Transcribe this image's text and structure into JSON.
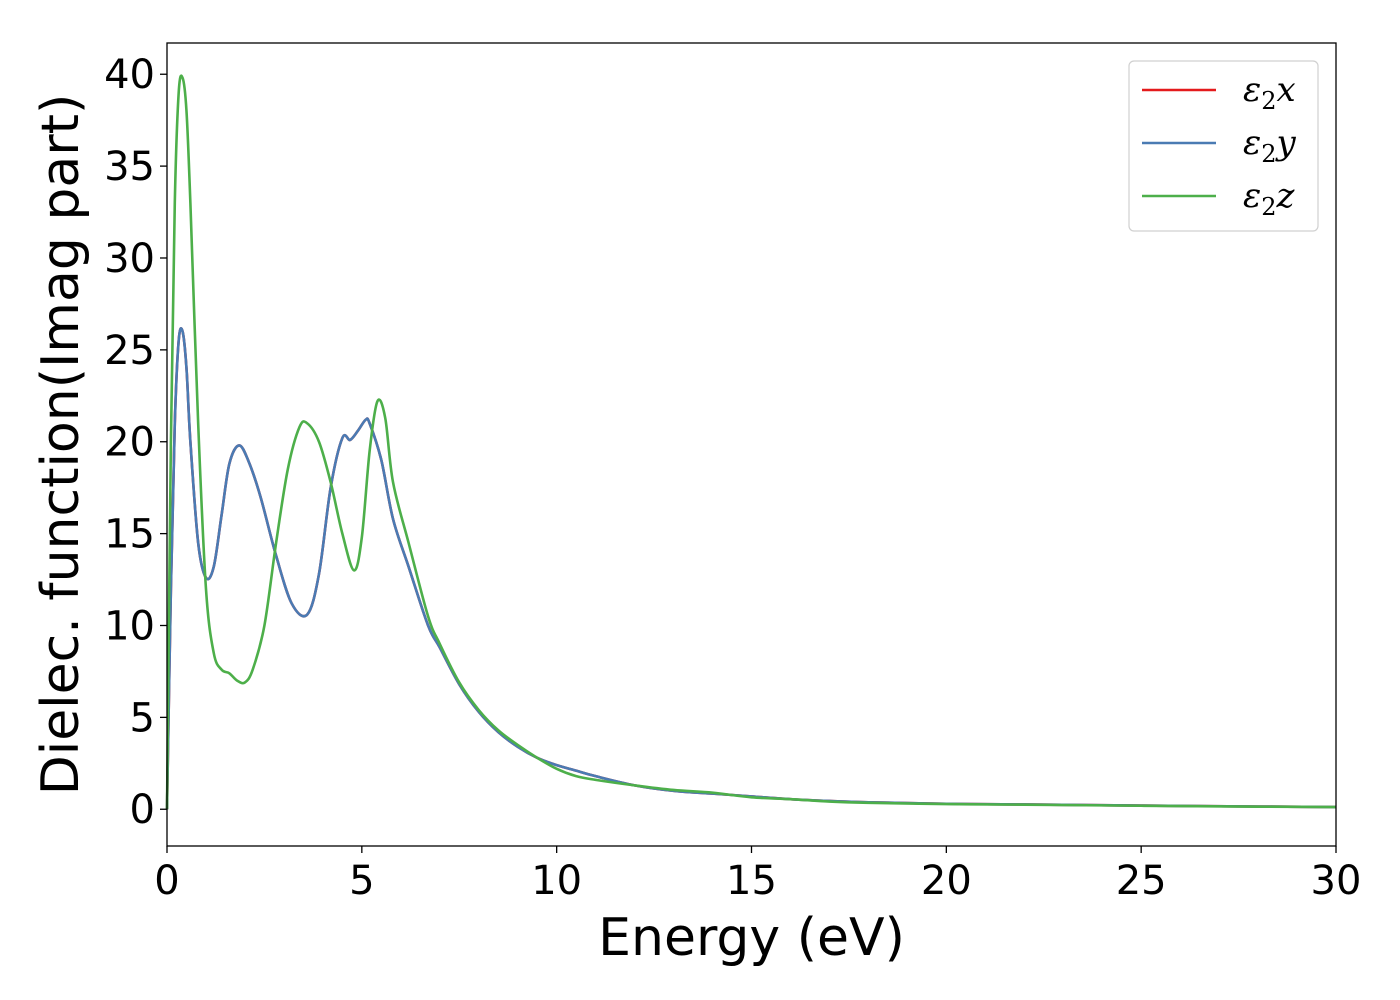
{
  "chart_data": {
    "type": "line",
    "xlabel": "Energy (eV)",
    "ylabel": "Dielec. function(Imag part)",
    "xlim": [
      0,
      30
    ],
    "ylim": [
      -2,
      41.7
    ],
    "xticks": [
      0,
      5,
      10,
      15,
      20,
      25,
      30
    ],
    "yticks": [
      0,
      5,
      10,
      15,
      20,
      25,
      30,
      35,
      40
    ],
    "grid": false,
    "legend_position": "top-right",
    "series": [
      {
        "name": "ε2x",
        "legend": {
          "base": "ε",
          "sub": "2",
          "suffix": "x"
        },
        "color": "#e41a1c",
        "x": [
          0,
          0.1,
          0.2,
          0.3,
          0.4,
          0.5,
          0.6,
          0.8,
          1.0,
          1.2,
          1.4,
          1.6,
          1.85,
          2.1,
          2.4,
          2.8,
          3.2,
          3.6,
          3.9,
          4.2,
          4.5,
          4.7,
          4.9,
          5.1,
          5.2,
          5.5,
          5.8,
          6.2,
          6.7,
          7.0,
          7.5,
          8.0,
          8.5,
          9.0,
          9.5,
          10.0,
          10.5,
          11.0,
          12.0,
          13.0,
          14.0,
          15.0,
          16.0,
          17.0,
          18.0,
          20.0,
          22.0,
          25.0,
          28.0,
          30.0
        ],
        "y": [
          0,
          12.0,
          21.0,
          25.5,
          26.0,
          24.0,
          20.0,
          14.5,
          12.6,
          13.2,
          16.0,
          18.8,
          19.8,
          18.9,
          17.0,
          13.8,
          11.2,
          10.6,
          12.8,
          17.5,
          20.2,
          20.1,
          20.6,
          21.2,
          21.0,
          19.0,
          15.8,
          13.2,
          10.0,
          8.8,
          6.8,
          5.3,
          4.2,
          3.4,
          2.8,
          2.4,
          2.1,
          1.8,
          1.3,
          1.0,
          0.85,
          0.7,
          0.55,
          0.45,
          0.38,
          0.3,
          0.26,
          0.2,
          0.15,
          0.12
        ]
      },
      {
        "name": "ε2y",
        "legend": {
          "base": "ε",
          "sub": "2",
          "suffix": "y"
        },
        "color": "#4a7bb3",
        "x": [
          0,
          0.1,
          0.2,
          0.3,
          0.4,
          0.5,
          0.6,
          0.8,
          1.0,
          1.2,
          1.4,
          1.6,
          1.85,
          2.1,
          2.4,
          2.8,
          3.2,
          3.6,
          3.9,
          4.2,
          4.5,
          4.7,
          4.9,
          5.1,
          5.2,
          5.5,
          5.8,
          6.2,
          6.7,
          7.0,
          7.5,
          8.0,
          8.5,
          9.0,
          9.5,
          10.0,
          10.5,
          11.0,
          12.0,
          13.0,
          14.0,
          15.0,
          16.0,
          17.0,
          18.0,
          20.0,
          22.0,
          25.0,
          28.0,
          30.0
        ],
        "y": [
          0,
          12.0,
          21.0,
          25.5,
          26.0,
          24.0,
          20.0,
          14.5,
          12.6,
          13.2,
          16.0,
          18.8,
          19.8,
          18.9,
          17.0,
          13.8,
          11.2,
          10.6,
          12.8,
          17.5,
          20.2,
          20.1,
          20.6,
          21.2,
          21.0,
          19.0,
          15.8,
          13.2,
          10.0,
          8.8,
          6.8,
          5.3,
          4.2,
          3.4,
          2.8,
          2.4,
          2.1,
          1.8,
          1.3,
          1.0,
          0.85,
          0.7,
          0.55,
          0.45,
          0.38,
          0.3,
          0.26,
          0.2,
          0.15,
          0.12
        ]
      },
      {
        "name": "ε2z",
        "legend": {
          "base": "ε",
          "sub": "2",
          "suffix": "z"
        },
        "color": "#4daf4a",
        "x": [
          0,
          0.1,
          0.2,
          0.3,
          0.4,
          0.5,
          0.6,
          0.8,
          1.0,
          1.2,
          1.4,
          1.6,
          1.8,
          2.0,
          2.2,
          2.5,
          2.8,
          3.1,
          3.4,
          3.6,
          3.9,
          4.2,
          4.5,
          4.8,
          5.0,
          5.2,
          5.4,
          5.6,
          5.8,
          6.2,
          6.7,
          7.0,
          7.5,
          8.0,
          8.5,
          9.0,
          9.5,
          10.0,
          10.5,
          11.0,
          12.0,
          13.0,
          14.0,
          15.0,
          16.0,
          17.0,
          18.0,
          20.0,
          22.0,
          25.0,
          28.0,
          30.0
        ],
        "y": [
          0,
          20.0,
          33.0,
          39.0,
          39.8,
          38.0,
          33.0,
          21.0,
          12.0,
          8.5,
          7.6,
          7.4,
          7.0,
          6.9,
          7.6,
          10.0,
          14.5,
          18.5,
          20.8,
          21.0,
          20.0,
          17.8,
          15.0,
          13.0,
          14.8,
          19.5,
          22.2,
          21.3,
          17.8,
          14.5,
          10.5,
          9.0,
          6.9,
          5.4,
          4.3,
          3.5,
          2.8,
          2.2,
          1.8,
          1.6,
          1.3,
          1.05,
          0.9,
          0.65,
          0.55,
          0.42,
          0.35,
          0.28,
          0.25,
          0.19,
          0.14,
          0.12
        ]
      }
    ]
  }
}
